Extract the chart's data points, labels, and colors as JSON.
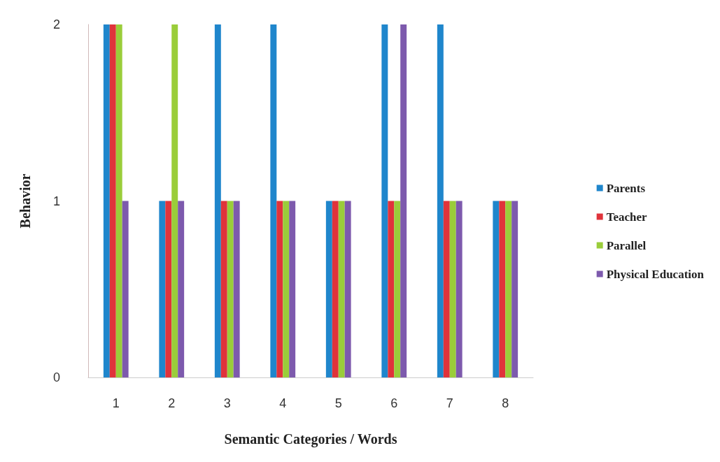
{
  "chart_data": {
    "type": "bar",
    "xlabel": "Semantic Categories / Words",
    "ylabel": "Behavior",
    "categories": [
      "1",
      "2",
      "3",
      "4",
      "5",
      "6",
      "7",
      "8"
    ],
    "series": [
      {
        "name": "Parents",
        "color": "#1f86cc",
        "values": [
          2,
          1,
          2,
          2,
          1,
          2,
          2,
          1
        ]
      },
      {
        "name": "Teacher",
        "color": "#e0333b",
        "values": [
          2,
          1,
          1,
          1,
          1,
          1,
          1,
          1
        ]
      },
      {
        "name": "Parallel",
        "color": "#9acd3a",
        "values": [
          2,
          2,
          1,
          1,
          1,
          1,
          1,
          1
        ]
      },
      {
        "name": "Physical Education",
        "color": "#7d5aad",
        "values": [
          1,
          1,
          1,
          1,
          1,
          2,
          1,
          1
        ]
      }
    ],
    "ylim": [
      0,
      2
    ],
    "yticks": [
      0,
      1,
      2
    ],
    "grid": false,
    "legend": "right"
  }
}
